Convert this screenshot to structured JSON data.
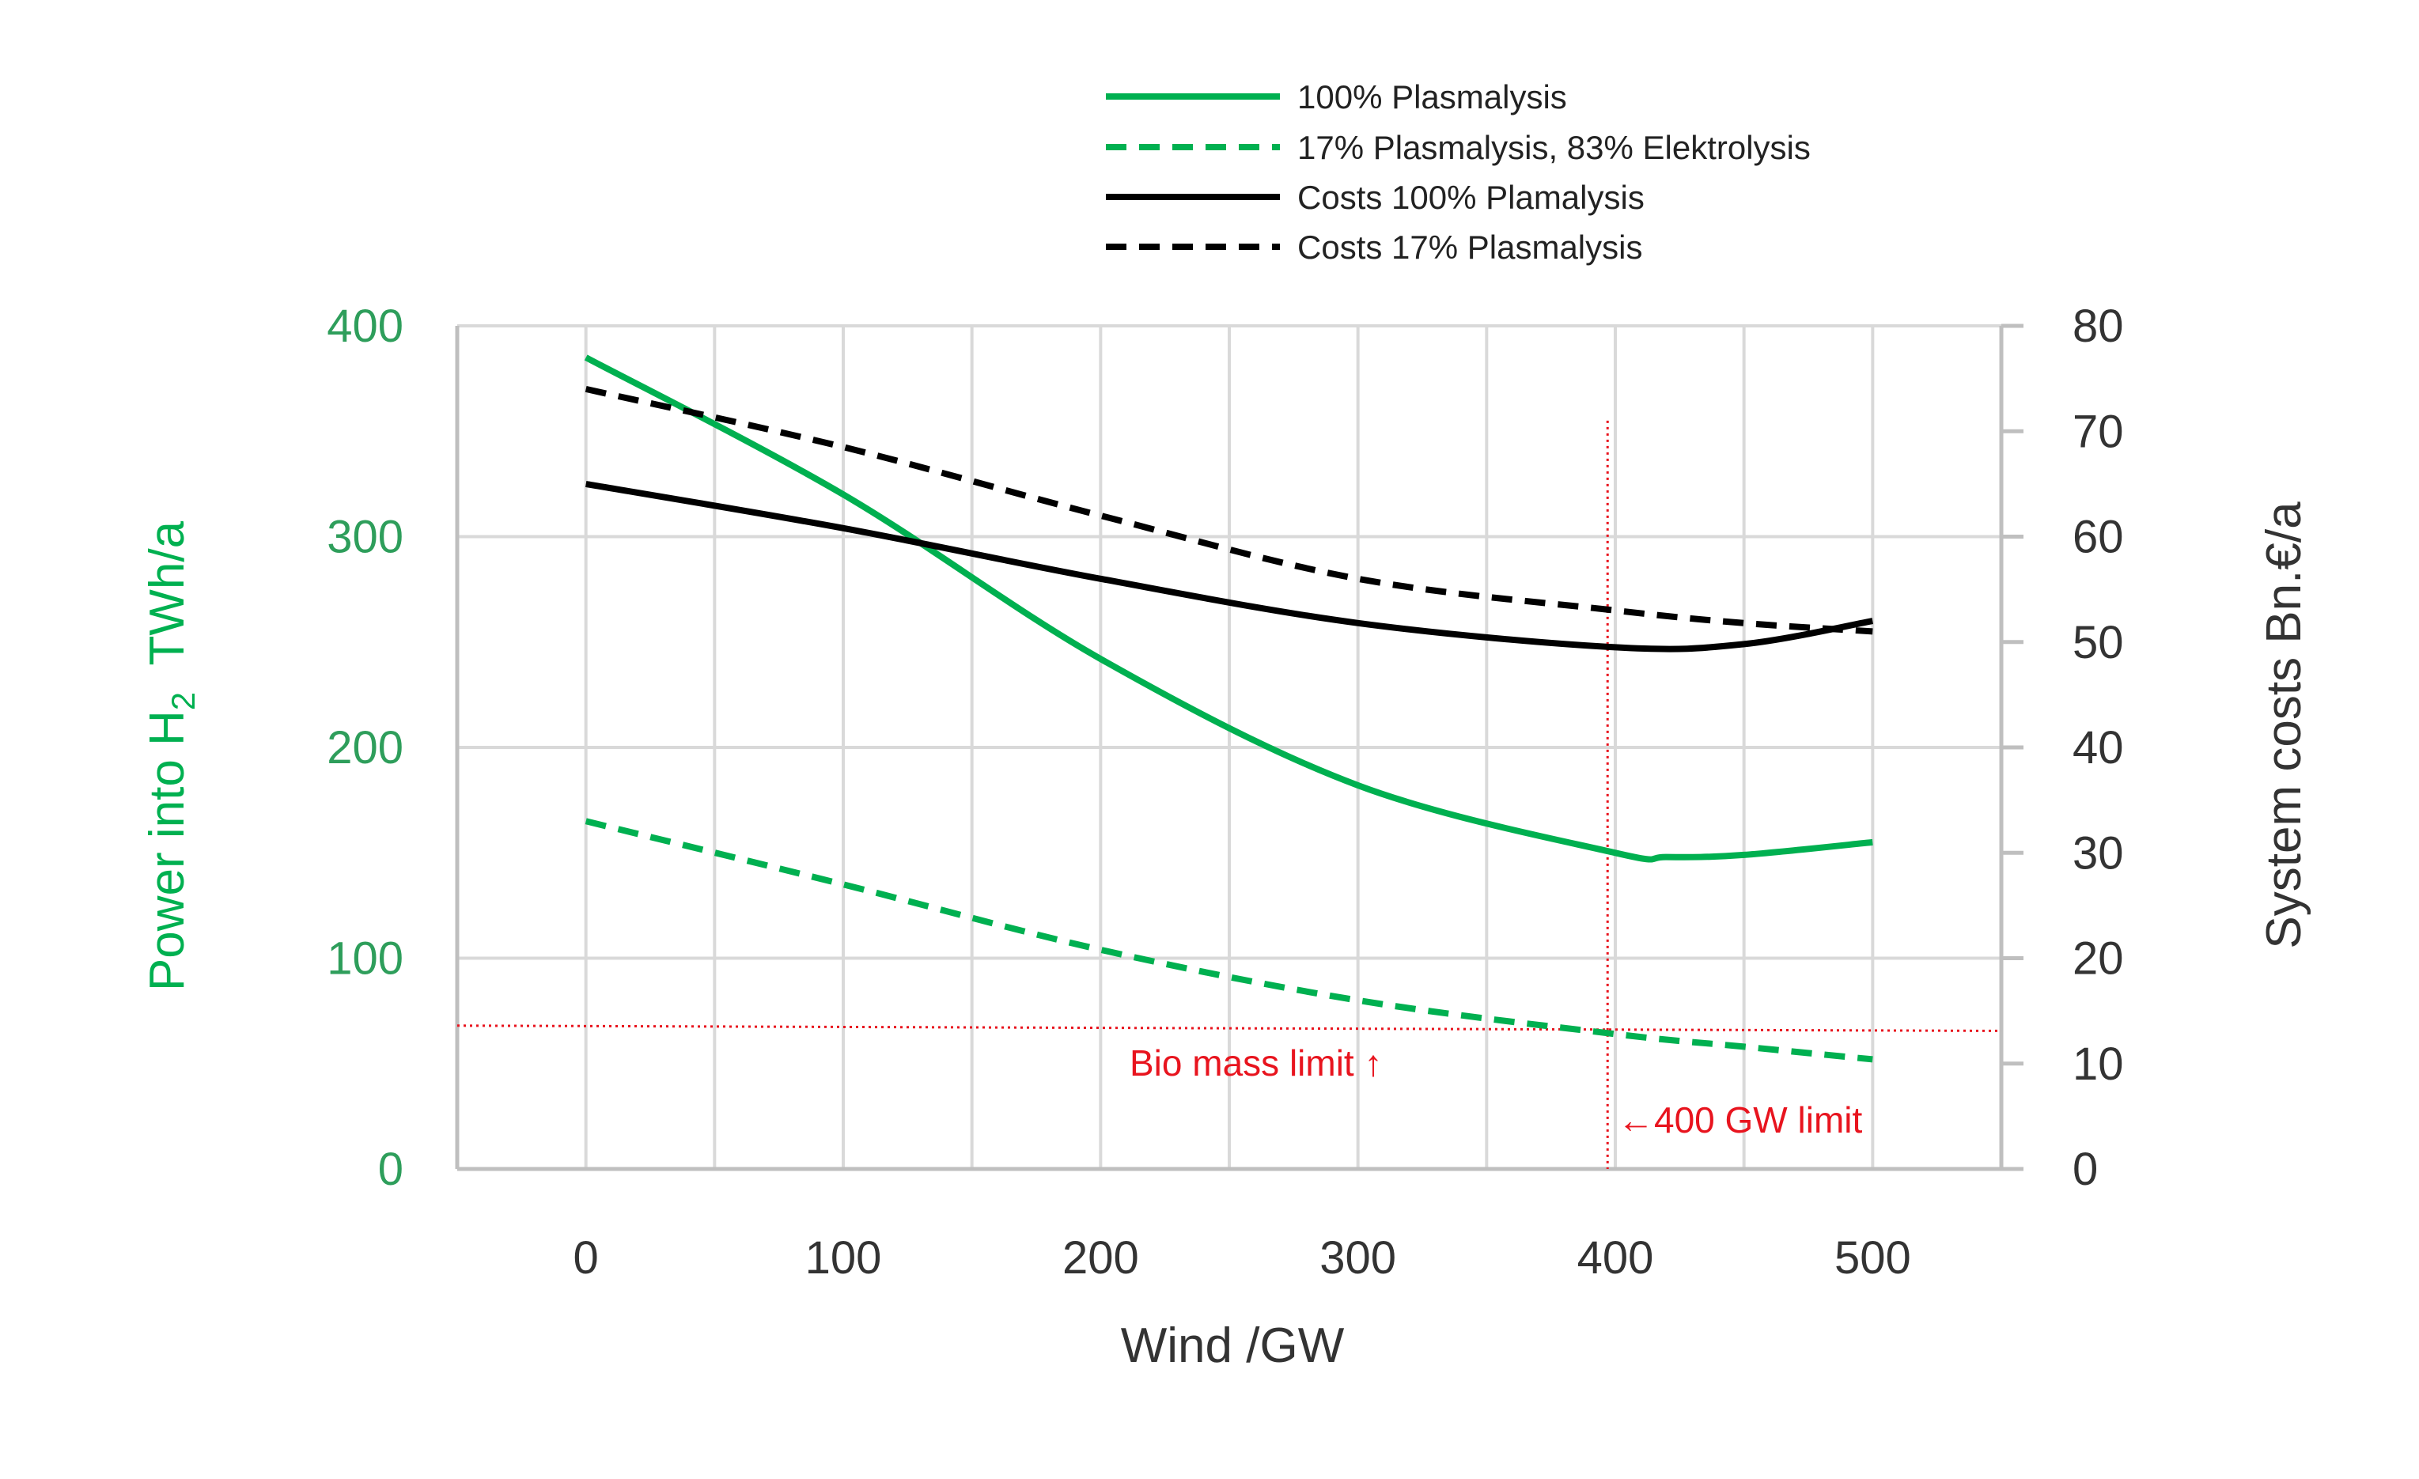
{
  "chart_data": {
    "type": "line",
    "title": "",
    "xlabel": "Wind /GW",
    "ylabel_left_main": "Power into H",
    "ylabel_left_sub": "2",
    "ylabel_left_unit": "TWh/a",
    "ylabel_right": "System costs Bn.€/a",
    "xlim": [
      -50,
      550
    ],
    "ylim_left": [
      0,
      400
    ],
    "ylim_right": [
      0,
      80
    ],
    "x_ticks": [
      0,
      100,
      200,
      300,
      400,
      500
    ],
    "x_tick_labels": [
      "0",
      "100",
      "200",
      "300",
      "400",
      "500"
    ],
    "y_left_ticks": [
      0,
      100,
      200,
      300,
      400
    ],
    "y_left_tick_labels": [
      "0",
      "100",
      "200",
      "300",
      "400"
    ],
    "y_right_ticks": [
      0,
      10,
      20,
      30,
      40,
      50,
      60,
      70,
      80
    ],
    "y_right_tick_labels": [
      "0",
      "10",
      "20",
      "30",
      "40",
      "50",
      "60",
      "70",
      "80"
    ],
    "grid": true,
    "legend_position": "top-center",
    "series": [
      {
        "name": "100% Plasmalysis",
        "axis": "left",
        "color": "#00B050",
        "dashed": false,
        "x": [
          0,
          100,
          200,
          300,
          400,
          420,
          450,
          500
        ],
        "values": [
          385,
          320,
          242,
          182,
          150,
          148,
          149,
          155
        ]
      },
      {
        "name": "17% Plasmalysis, 83% Elektrolysis",
        "axis": "left",
        "color": "#00B050",
        "dashed": true,
        "x": [
          0,
          100,
          200,
          300,
          400,
          450,
          500
        ],
        "values": [
          165,
          135,
          104,
          80,
          64,
          58,
          52
        ]
      },
      {
        "name": "Costs 100% Plamalysis",
        "axis": "right",
        "color": "#000000",
        "dashed": false,
        "x": [
          0,
          100,
          200,
          300,
          400,
          450,
          500
        ],
        "values": [
          65,
          60.8,
          56,
          51.8,
          49.5,
          49.8,
          52
        ]
      },
      {
        "name": "Costs 17% Plasmalysis",
        "axis": "right",
        "color": "#000000",
        "dashed": true,
        "x": [
          0,
          100,
          200,
          300,
          400,
          450,
          500
        ],
        "values": [
          74,
          68.5,
          62,
          56,
          53,
          51.8,
          51
        ]
      }
    ],
    "reference_lines": {
      "bio_mass_limit": {
        "axis": "left",
        "y_start": 68,
        "y_end": 65.5,
        "color": "#E8141E"
      },
      "wind_limit": {
        "x": 397,
        "y_top": 355,
        "color": "#E8141E"
      }
    },
    "annotations": {
      "bio_mass": "Bio mass limit ↑",
      "wind_limit": "←400 GW limit"
    }
  }
}
